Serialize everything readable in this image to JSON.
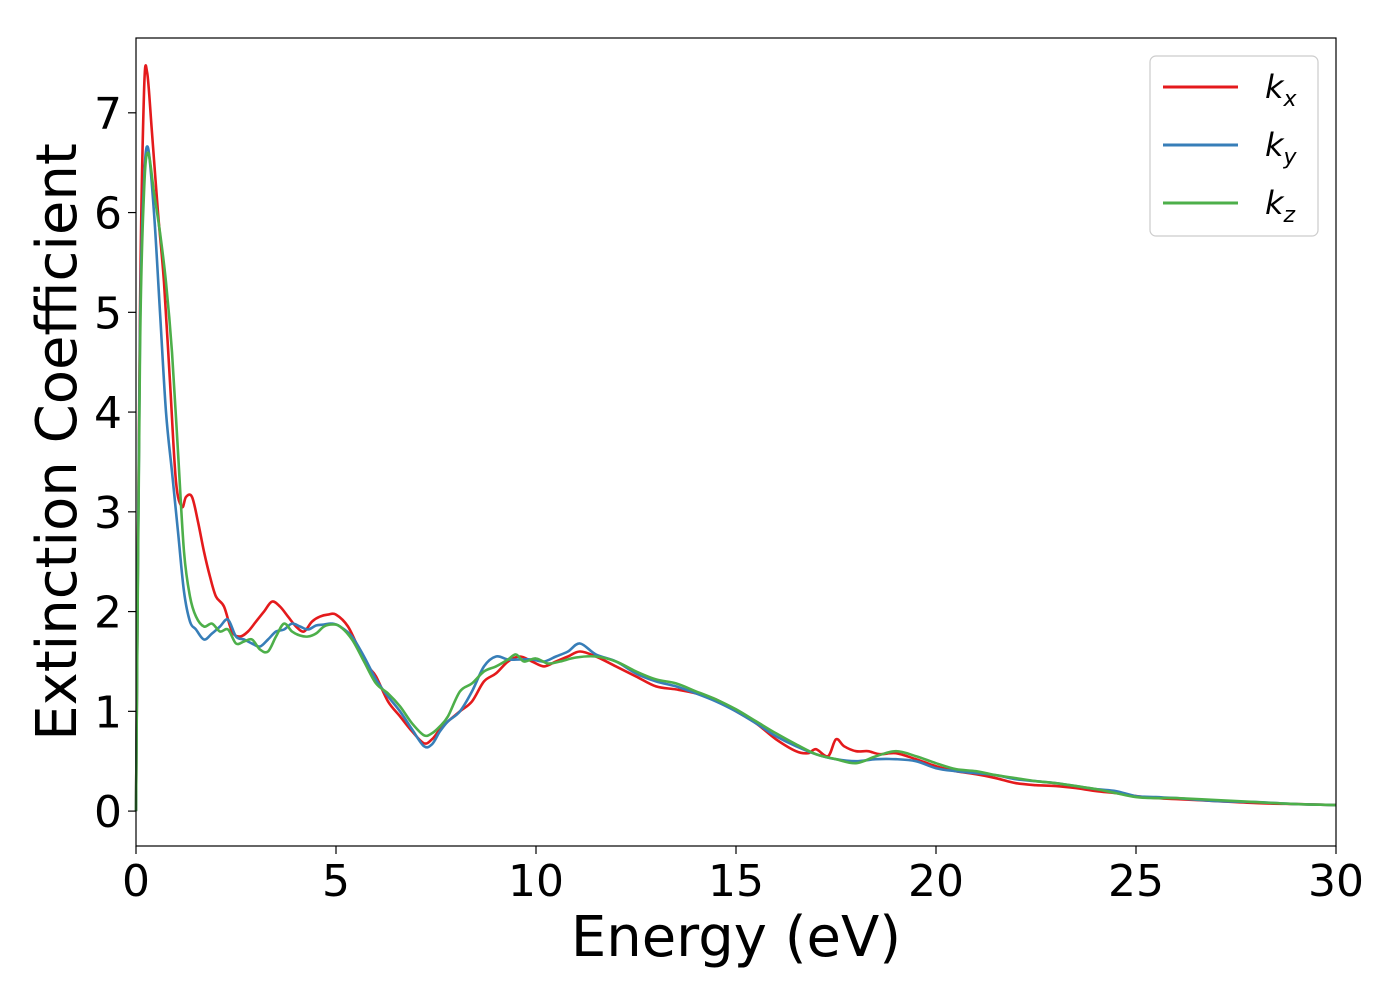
{
  "chart_data": {
    "type": "line",
    "title": "",
    "xlabel": "Energy (eV)",
    "ylabel": "Extinction Coefficient",
    "xlim": [
      0,
      30
    ],
    "ylim": [
      -0.35,
      7.75
    ],
    "xticks": [
      0,
      5,
      10,
      15,
      20,
      25,
      30
    ],
    "yticks": [
      0,
      1,
      2,
      3,
      4,
      5,
      6,
      7
    ],
    "grid": false,
    "legend_position": "top-right",
    "series": [
      {
        "name": "k_x",
        "legend_main": "k",
        "legend_sub": "x",
        "color": "#e41a1c",
        "x": [
          0,
          0.1,
          0.2,
          0.28,
          0.4,
          0.55,
          0.7,
          0.85,
          1.0,
          1.15,
          1.25,
          1.4,
          1.55,
          1.7,
          1.85,
          2.0,
          2.2,
          2.4,
          2.6,
          2.8,
          3.0,
          3.2,
          3.4,
          3.6,
          3.8,
          4.0,
          4.2,
          4.4,
          4.6,
          4.8,
          5.0,
          5.3,
          5.6,
          5.8,
          6.0,
          6.3,
          6.6,
          6.9,
          7.2,
          7.4,
          7.6,
          7.8,
          8.1,
          8.4,
          8.7,
          9.0,
          9.3,
          9.6,
          9.9,
          10.2,
          10.5,
          10.8,
          11.1,
          11.5,
          12.0,
          12.5,
          13.0,
          13.5,
          14.0,
          14.5,
          15.0,
          15.5,
          16.0,
          16.5,
          16.8,
          17.0,
          17.3,
          17.5,
          17.7,
          18.0,
          18.3,
          18.6,
          19.0,
          19.5,
          20.0,
          20.5,
          21.0,
          21.5,
          22.0,
          22.5,
          23.0,
          23.5,
          24.0,
          24.5,
          25.0,
          25.5,
          26.0,
          27.0,
          28.0,
          29.0,
          30.0
        ],
        "y": [
          0,
          5.0,
          7.2,
          7.4,
          6.8,
          6.0,
          5.3,
          4.3,
          3.3,
          3.05,
          3.15,
          3.15,
          2.9,
          2.6,
          2.35,
          2.15,
          2.05,
          1.8,
          1.75,
          1.8,
          1.9,
          2.0,
          2.1,
          2.05,
          1.95,
          1.85,
          1.8,
          1.9,
          1.95,
          1.97,
          1.97,
          1.85,
          1.6,
          1.45,
          1.35,
          1.1,
          0.95,
          0.8,
          0.68,
          0.72,
          0.82,
          0.9,
          1.0,
          1.1,
          1.3,
          1.38,
          1.5,
          1.55,
          1.5,
          1.45,
          1.5,
          1.55,
          1.6,
          1.55,
          1.45,
          1.35,
          1.25,
          1.22,
          1.18,
          1.12,
          1.0,
          0.88,
          0.72,
          0.6,
          0.58,
          0.62,
          0.55,
          0.72,
          0.65,
          0.6,
          0.6,
          0.57,
          0.58,
          0.52,
          0.45,
          0.4,
          0.37,
          0.33,
          0.28,
          0.26,
          0.25,
          0.23,
          0.2,
          0.18,
          0.15,
          0.13,
          0.12,
          0.1,
          0.08,
          0.07,
          0.06
        ]
      },
      {
        "name": "k_y",
        "legend_main": "k",
        "legend_sub": "y",
        "color": "#377eb8",
        "x": [
          0,
          0.1,
          0.2,
          0.3,
          0.45,
          0.6,
          0.75,
          0.9,
          1.05,
          1.2,
          1.35,
          1.5,
          1.7,
          1.9,
          2.1,
          2.3,
          2.5,
          2.7,
          2.9,
          3.1,
          3.3,
          3.5,
          3.7,
          3.9,
          4.1,
          4.3,
          4.5,
          4.7,
          4.9,
          5.1,
          5.4,
          5.7,
          6.0,
          6.3,
          6.6,
          6.9,
          7.2,
          7.4,
          7.6,
          7.8,
          8.1,
          8.4,
          8.7,
          9.0,
          9.3,
          9.6,
          9.9,
          10.2,
          10.5,
          10.8,
          11.1,
          11.5,
          12.0,
          12.5,
          13.0,
          13.5,
          14.0,
          14.5,
          15.0,
          15.5,
          16.0,
          16.5,
          17.0,
          17.5,
          18.0,
          18.5,
          19.0,
          19.5,
          20.0,
          20.5,
          21.0,
          21.5,
          22.0,
          22.5,
          23.0,
          23.5,
          24.0,
          24.5,
          25.0,
          25.5,
          26.0,
          27.0,
          28.0,
          29.0,
          30.0
        ],
        "y": [
          0,
          4.8,
          6.3,
          6.65,
          6.0,
          5.0,
          4.0,
          3.4,
          2.8,
          2.2,
          1.9,
          1.82,
          1.72,
          1.78,
          1.85,
          1.92,
          1.75,
          1.72,
          1.68,
          1.65,
          1.72,
          1.8,
          1.82,
          1.88,
          1.85,
          1.82,
          1.86,
          1.87,
          1.88,
          1.85,
          1.75,
          1.55,
          1.32,
          1.15,
          1.0,
          0.82,
          0.65,
          0.67,
          0.8,
          0.9,
          1.0,
          1.2,
          1.45,
          1.55,
          1.52,
          1.52,
          1.52,
          1.5,
          1.55,
          1.6,
          1.68,
          1.57,
          1.5,
          1.38,
          1.3,
          1.25,
          1.18,
          1.1,
          1.0,
          0.88,
          0.75,
          0.65,
          0.57,
          0.52,
          0.5,
          0.52,
          0.52,
          0.5,
          0.43,
          0.4,
          0.38,
          0.36,
          0.32,
          0.3,
          0.28,
          0.25,
          0.22,
          0.2,
          0.15,
          0.14,
          0.13,
          0.1,
          0.09,
          0.07,
          0.06
        ]
      },
      {
        "name": "k_z",
        "legend_main": "k",
        "legend_sub": "z",
        "color": "#4daf4a",
        "x": [
          0,
          0.1,
          0.2,
          0.3,
          0.45,
          0.6,
          0.75,
          0.9,
          1.05,
          1.2,
          1.35,
          1.5,
          1.7,
          1.9,
          2.1,
          2.3,
          2.5,
          2.7,
          2.9,
          3.1,
          3.3,
          3.5,
          3.7,
          3.9,
          4.1,
          4.3,
          4.5,
          4.7,
          4.9,
          5.1,
          5.4,
          5.7,
          6.0,
          6.3,
          6.6,
          6.9,
          7.2,
          7.4,
          7.6,
          7.8,
          8.1,
          8.4,
          8.7,
          9.0,
          9.3,
          9.5,
          9.7,
          10.0,
          10.3,
          10.6,
          11.0,
          11.5,
          12.0,
          12.5,
          13.0,
          13.5,
          14.0,
          14.5,
          15.0,
          15.5,
          16.0,
          16.5,
          17.0,
          17.5,
          18.0,
          18.5,
          19.0,
          19.5,
          20.0,
          20.5,
          21.0,
          21.5,
          22.0,
          22.5,
          23.0,
          23.5,
          24.0,
          24.5,
          25.0,
          25.5,
          26.0,
          27.0,
          28.0,
          29.0,
          30.0
        ],
        "y": [
          0,
          4.6,
          6.2,
          6.6,
          6.2,
          5.8,
          5.3,
          4.6,
          3.6,
          2.6,
          2.15,
          1.95,
          1.85,
          1.88,
          1.8,
          1.82,
          1.68,
          1.7,
          1.72,
          1.62,
          1.6,
          1.75,
          1.88,
          1.8,
          1.76,
          1.75,
          1.78,
          1.85,
          1.87,
          1.85,
          1.72,
          1.5,
          1.28,
          1.18,
          1.05,
          0.88,
          0.76,
          0.78,
          0.85,
          0.95,
          1.2,
          1.28,
          1.4,
          1.45,
          1.52,
          1.57,
          1.5,
          1.53,
          1.48,
          1.5,
          1.54,
          1.55,
          1.5,
          1.4,
          1.32,
          1.28,
          1.2,
          1.12,
          1.02,
          0.9,
          0.78,
          0.67,
          0.57,
          0.52,
          0.48,
          0.55,
          0.6,
          0.55,
          0.48,
          0.42,
          0.4,
          0.36,
          0.33,
          0.3,
          0.28,
          0.25,
          0.22,
          0.18,
          0.14,
          0.13,
          0.13,
          0.11,
          0.09,
          0.07,
          0.06
        ]
      }
    ]
  }
}
